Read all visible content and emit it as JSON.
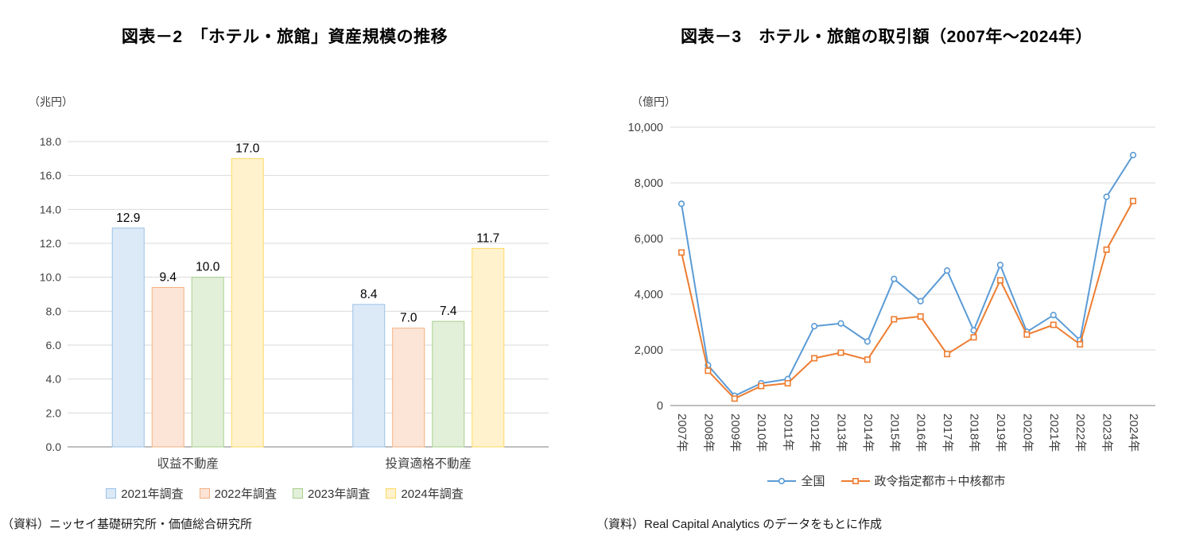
{
  "page": {
    "background": "#ffffff"
  },
  "chart_data": [
    {
      "type": "bar",
      "title": "図表－2　「ホテル・旅館」資産規模の推移",
      "unit": "（兆円）",
      "source": "（資料）ニッセイ基礎研究所・価値総合研究所",
      "categories": [
        "収益不動産",
        "投資適格不動産"
      ],
      "series": [
        {
          "name": "2021年調査",
          "values": [
            12.9,
            8.4
          ],
          "fill": "#DCE9F7",
          "stroke": "#9CC2E5"
        },
        {
          "name": "2022年調査",
          "values": [
            9.4,
            7.0
          ],
          "fill": "#FCE4D6",
          "stroke": "#F4B183"
        },
        {
          "name": "2023年調査",
          "values": [
            10.0,
            7.4
          ],
          "fill": "#E2EFD9",
          "stroke": "#A8D08D"
        },
        {
          "name": "2024年調査",
          "values": [
            17.0,
            11.7
          ],
          "fill": "#FFF2CC",
          "stroke": "#FFD965"
        }
      ],
      "ylim": [
        0,
        18
      ],
      "ytick_step": 2,
      "grid": true,
      "value_labels": true,
      "legend_position": "bottom"
    },
    {
      "type": "line",
      "title": "図表－3　ホテル・旅館の取引額（2007年～2024年）",
      "unit": "（億円）",
      "source": "（資料）Real Capital Analytics のデータをもとに作成",
      "x": [
        "2007年",
        "2008年",
        "2009年",
        "2010年",
        "2011年",
        "2012年",
        "2013年",
        "2014年",
        "2015年",
        "2016年",
        "2017年",
        "2018年",
        "2019年",
        "2020年",
        "2021年",
        "2022年",
        "2023年",
        "2024年"
      ],
      "series": [
        {
          "name": "全国",
          "marker": "circle",
          "color": "#5B9BD5",
          "values": [
            7250,
            1450,
            350,
            800,
            950,
            2850,
            2950,
            2300,
            4550,
            3750,
            4850,
            2700,
            5050,
            2650,
            3250,
            2350,
            7500,
            9000
          ]
        },
        {
          "name": "政令指定都市＋中核都市",
          "marker": "square",
          "color": "#ED7D31",
          "values": [
            5500,
            1250,
            250,
            700,
            800,
            1700,
            1900,
            1650,
            3100,
            3200,
            1850,
            2450,
            4500,
            2550,
            2900,
            2200,
            5600,
            7350
          ]
        }
      ],
      "ylim": [
        0,
        10000
      ],
      "ytick_step": 2000,
      "xtick_rotation": 90,
      "grid": true,
      "legend_position": "bottom"
    }
  ]
}
